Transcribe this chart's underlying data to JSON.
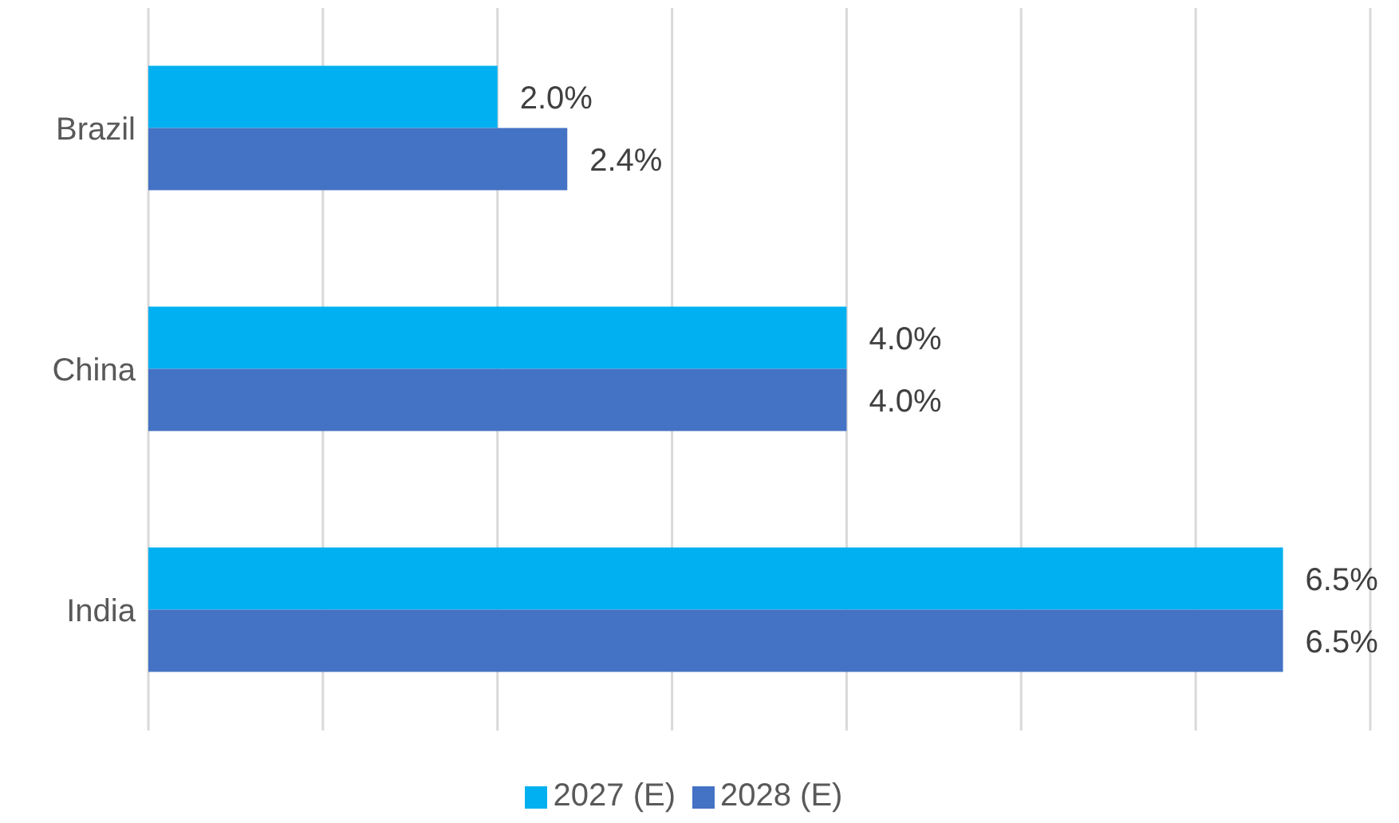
{
  "chart_data": {
    "type": "bar",
    "orientation": "horizontal",
    "categories": [
      "Brazil",
      "China",
      "India"
    ],
    "series": [
      {
        "name": "2027 (E)",
        "color": "#00b0f0",
        "values": [
          2.0,
          4.0,
          6.5
        ],
        "value_labels": [
          "2.0%",
          "4.0%",
          "6.5%"
        ]
      },
      {
        "name": "2028 (E)",
        "color": "#4472c4",
        "values": [
          2.4,
          4.0,
          6.5
        ],
        "value_labels": [
          "2.4%",
          "4.0%",
          "6.5%"
        ]
      }
    ],
    "xlim": [
      0,
      7
    ],
    "xticks": [
      {
        "value": 0,
        "label": null
      },
      {
        "value": 1,
        "label": null
      },
      {
        "value": 2,
        "label": null
      },
      {
        "value": 3,
        "label": null
      },
      {
        "value": 4,
        "label": null
      },
      {
        "value": 5,
        "label": null
      },
      {
        "value": 6,
        "label": null
      },
      {
        "value": 7,
        "label": null
      }
    ],
    "tick_labels": "y",
    "grid": "x",
    "legend": "bottom"
  }
}
